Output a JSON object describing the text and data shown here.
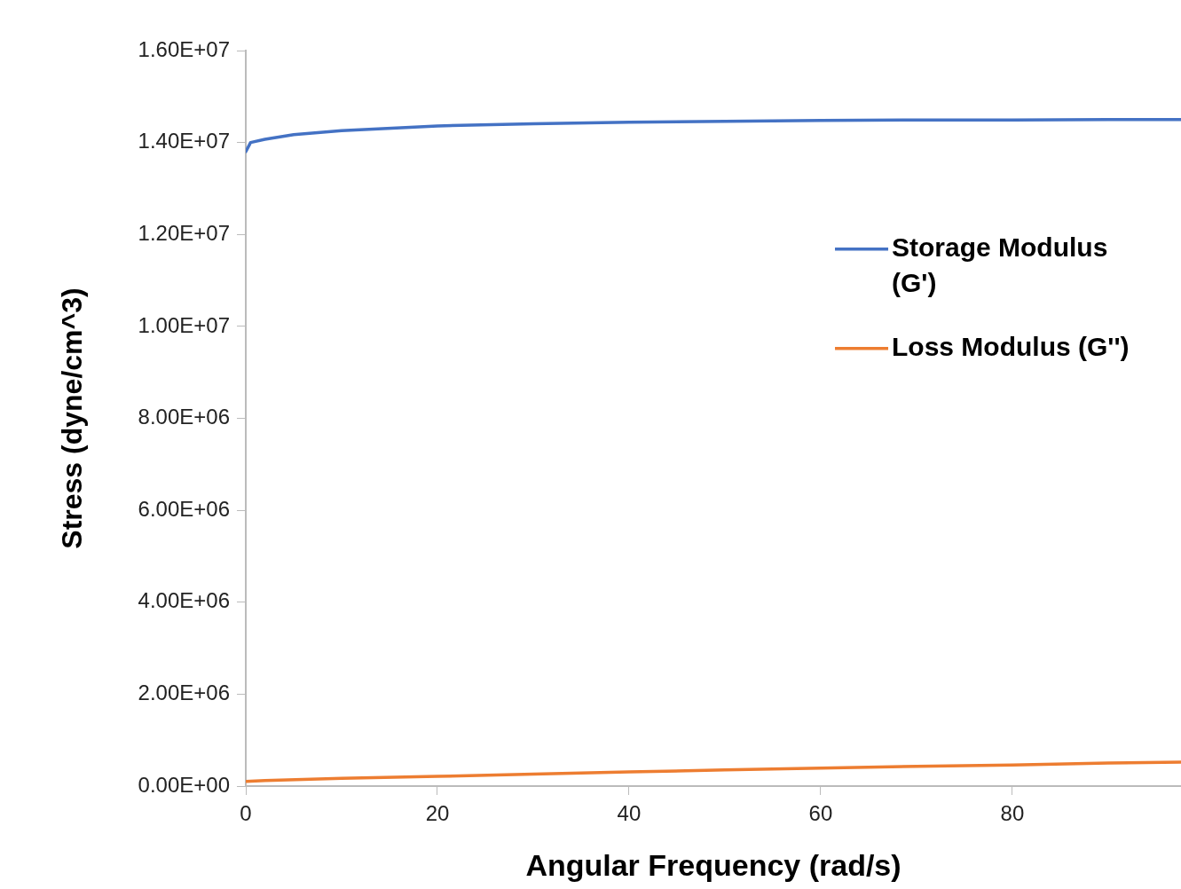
{
  "chart_data": {
    "type": "line",
    "xlabel": "Angular Frequency (rad/s)",
    "ylabel": "Stress (dyne/cm^3)",
    "xlim": [
      0,
      97.6
    ],
    "xticks": [
      0,
      20,
      40,
      60,
      80
    ],
    "ylim": [
      0,
      16000000
    ],
    "yticks": [
      {
        "value": 0,
        "label": "0.00E+00"
      },
      {
        "value": 2000000,
        "label": "2.00E+06"
      },
      {
        "value": 4000000,
        "label": "4.00E+06"
      },
      {
        "value": 6000000,
        "label": "6.00E+06"
      },
      {
        "value": 8000000,
        "label": "8.00E+06"
      },
      {
        "value": 10000000,
        "label": "1.00E+07"
      },
      {
        "value": 12000000,
        "label": "1.20E+07"
      },
      {
        "value": 14000000,
        "label": "1.40E+07"
      },
      {
        "value": 16000000,
        "label": "1.60E+07"
      }
    ],
    "legend": "right",
    "marker": "none",
    "line_style": "solid",
    "series": [
      {
        "name": "Storage Modulus (G')",
        "color": "#4472c4",
        "x": [
          0,
          0.5,
          2,
          5,
          10,
          20,
          30,
          40,
          50,
          60,
          70,
          80,
          90,
          97.6
        ],
        "values": [
          13800000,
          14000000,
          14070000,
          14170000,
          14260000,
          14360000,
          14410000,
          14440000,
          14460000,
          14480000,
          14490000,
          14490000,
          14500000,
          14500000
        ]
      },
      {
        "name": "Loss Modulus (G'')",
        "color": "#ed7d31",
        "x": [
          0,
          2,
          10,
          20,
          30,
          40,
          50,
          60,
          70,
          80,
          90,
          97.6
        ],
        "values": [
          100000,
          120000,
          170000,
          210000,
          260000,
          310000,
          350000,
          390000,
          430000,
          460000,
          500000,
          520000
        ]
      }
    ]
  }
}
